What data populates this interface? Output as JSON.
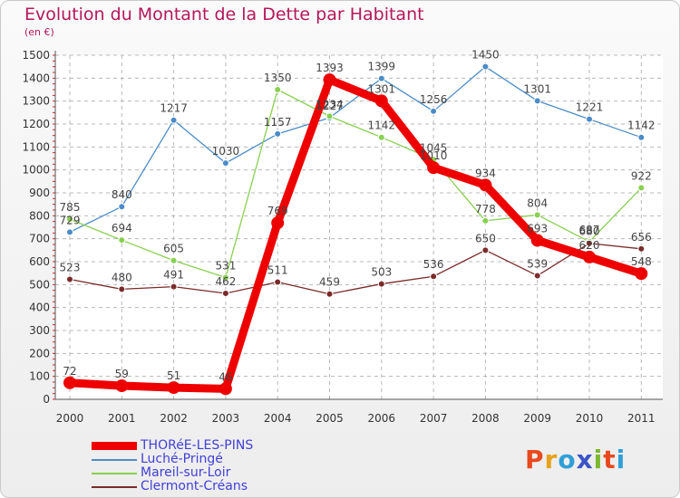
{
  "header": {
    "title": "Evolution du Montant de la Dette par Habitant",
    "subtitle": "(en €)"
  },
  "logo": {
    "text": "Proxiti",
    "colors": [
      "#e8491d",
      "#e8a21d",
      "#2f9fd8",
      "#3a53c5",
      "#7ab82e",
      "#e8491d",
      "#2f9fd8"
    ]
  },
  "chart_data": {
    "type": "line",
    "title": "Evolution du Montant de la Dette par Habitant",
    "subtitle": "(en €)",
    "xlabel": "",
    "ylabel": "",
    "x": [
      "2000",
      "2001",
      "2002",
      "2003",
      "2004",
      "2005",
      "2006",
      "2007",
      "2008",
      "2009",
      "2010",
      "2011"
    ],
    "ylim": [
      0,
      1500
    ],
    "yticks": [
      0,
      100,
      200,
      300,
      400,
      500,
      600,
      700,
      800,
      900,
      1000,
      1100,
      1200,
      1300,
      1400,
      1500
    ],
    "grid": true,
    "legend_position": "bottom-left",
    "series": [
      {
        "name": "THORéE-LES-PINS",
        "color": "#ee0000",
        "width": "thick",
        "values": [
          72,
          59,
          51,
          46,
          769,
          1393,
          1301,
          1010,
          934,
          693,
          620,
          548
        ],
        "labels": [
          "72",
          "59",
          "51",
          "46",
          "769",
          "1393",
          "1301",
          "1010",
          "934",
          "693",
          "620",
          "548"
        ]
      },
      {
        "name": "Luché-Pringé",
        "color": "#4a8cc8",
        "width": "thin",
        "values": [
          729,
          840,
          1217,
          1030,
          1157,
          1227,
          1399,
          1256,
          1450,
          1301,
          1221,
          1142
        ],
        "labels": [
          "729",
          "840",
          "1217",
          "1030",
          "1157",
          "1227",
          "1399",
          "1256",
          "1450",
          "1301",
          "1221",
          "1142"
        ]
      },
      {
        "name": "Mareil-sur-Loir",
        "color": "#88d050",
        "width": "thin",
        "values": [
          785,
          694,
          605,
          531,
          1350,
          1234,
          1142,
          1045,
          778,
          804,
          687,
          922
        ],
        "labels": [
          "785",
          "694",
          "605",
          "531",
          "1350",
          "1234",
          "1142",
          "1045",
          "778",
          "804",
          "687",
          "922"
        ]
      },
      {
        "name": "Clermont-Créans",
        "color": "#7a2a2a",
        "width": "thin",
        "values": [
          523,
          480,
          491,
          462,
          511,
          459,
          503,
          536,
          650,
          539,
          680,
          656
        ],
        "labels": [
          "523",
          "480",
          "491",
          "462",
          "511",
          "459",
          "503",
          "536",
          "650",
          "539",
          "680",
          "656"
        ]
      }
    ]
  }
}
